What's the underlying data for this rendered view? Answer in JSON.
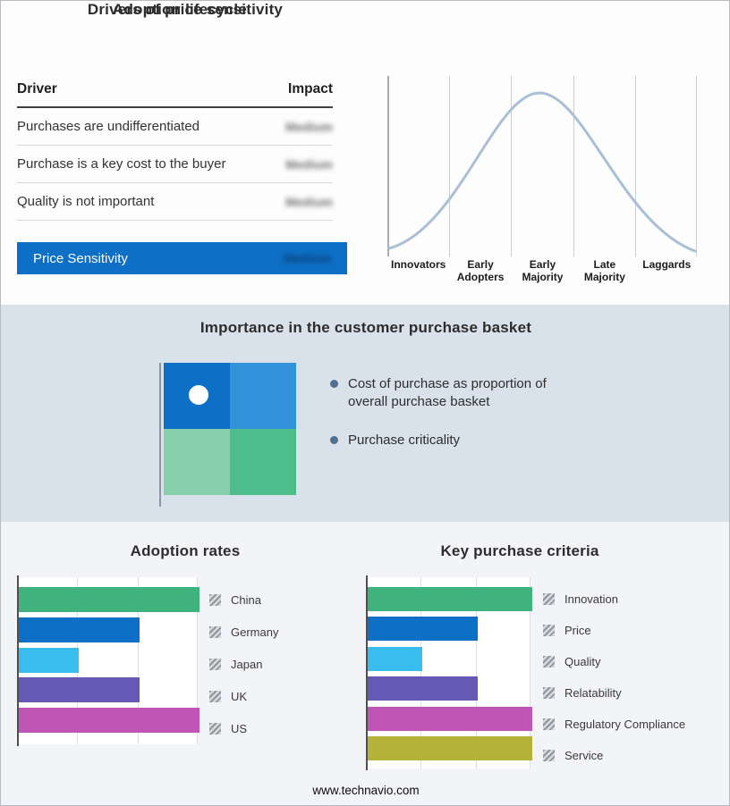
{
  "footer": {
    "website": "www.technavio.com"
  },
  "colors": {
    "accent_blue": "#0d6fc5",
    "band_bg": "#d9e1ea",
    "bullet_dot": "#50708f",
    "curve": "#aabfd5"
  },
  "drivers_panel": {
    "title": "Drivers of price sensitivity",
    "columns": {
      "driver": "Driver",
      "impact": "Impact"
    },
    "rows": [
      {
        "driver": "Purchases are undifferentiated",
        "impact": "Medium"
      },
      {
        "driver": "Purchase is a key cost to the buyer",
        "impact": "Medium"
      },
      {
        "driver": "Quality is not important",
        "impact": "Medium"
      }
    ],
    "summary": {
      "label": "Price Sensitivity",
      "impact": "Medium"
    }
  },
  "basket_panel": {
    "title": "Importance in the customer purchase basket",
    "bullets": [
      "Cost of purchase as proportion of overall purchase basket",
      "Purchase criticality"
    ],
    "quadrant_colors": {
      "top_left": "#0d6fc5",
      "top_right": "#3292da",
      "bottom_left": "#85cfab",
      "bottom_right": "#4cbd8b"
    }
  },
  "chart_data": [
    {
      "type": "line",
      "title": "Adoption lifecycle",
      "shape": "bell-curve",
      "categories": [
        "Innovators",
        "Early Adopters",
        "Early Majority",
        "Late Majority",
        "Laggards"
      ],
      "peak_category": "Early Majority",
      "grid": true,
      "curve_color": "#aabfd5"
    },
    {
      "type": "bar",
      "orientation": "horizontal",
      "title": "Adoption rates",
      "categories": [
        "China",
        "Germany",
        "Japan",
        "UK",
        "US"
      ],
      "values": [
        3,
        2,
        1,
        2,
        3
      ],
      "colors": [
        "#3fb27d",
        "#0d6fc5",
        "#38bdee",
        "#6659b5",
        "#c055b5"
      ],
      "xlim": [
        0,
        3
      ],
      "grid": true,
      "legend_position": "right"
    },
    {
      "type": "bar",
      "orientation": "horizontal",
      "title": "Key purchase criteria",
      "categories": [
        "Innovation",
        "Price",
        "Quality",
        "Relatability",
        "Regulatory Compliance",
        "Service"
      ],
      "values": [
        3,
        2,
        1,
        2,
        3,
        3
      ],
      "colors": [
        "#3fb27d",
        "#0d6fc5",
        "#38bdee",
        "#6659b5",
        "#c055b5",
        "#b5b238"
      ],
      "xlim": [
        0,
        3
      ],
      "grid": true,
      "legend_position": "right"
    }
  ]
}
